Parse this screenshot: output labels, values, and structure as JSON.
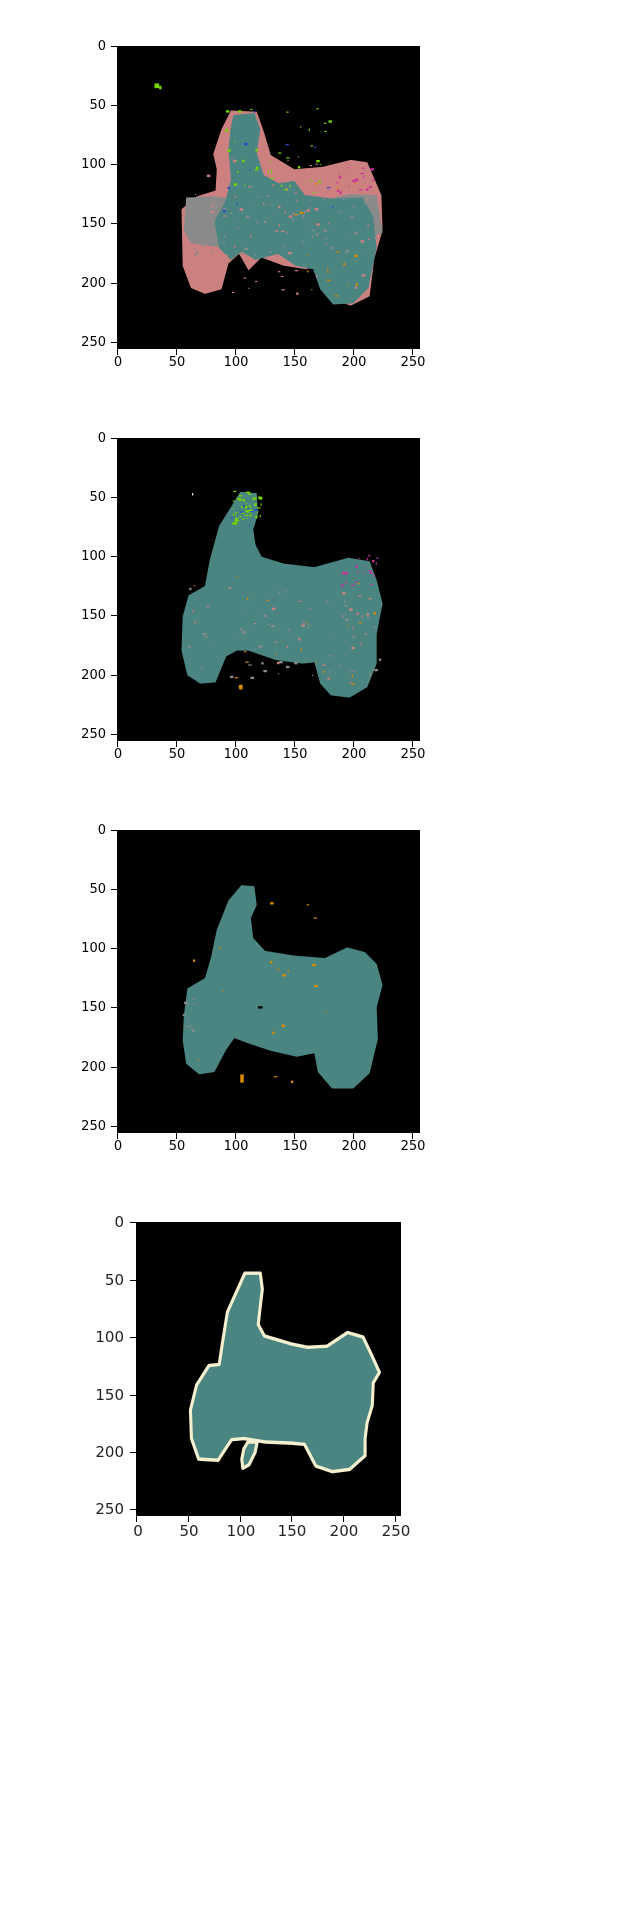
{
  "colors": {
    "background": "#000000",
    "main_segment": "#4a8582",
    "pink_segment": "#cd8080",
    "gray_segment": "#8a8a8a",
    "green_noise": "#74d600",
    "orange_noise": "#d98a00",
    "magenta_noise": "#cc2f9d",
    "blue_noise": "#2b46c8",
    "outline": "#f4efcf"
  },
  "chart_data": [
    {
      "type": "heatmap",
      "title": "",
      "xlabel": "",
      "ylabel": "",
      "xlim": [
        0,
        255
      ],
      "ylim": [
        255,
        0
      ],
      "x_ticks": [
        0,
        50,
        100,
        150,
        200,
        250
      ],
      "y_ticks": [
        0,
        50,
        100,
        150,
        200,
        250
      ],
      "grid": false,
      "segments": [
        {
          "color": "#cd8080",
          "polygon": [
            [
              96,
              54
            ],
            [
              118,
              55
            ],
            [
              124,
              72
            ],
            [
              130,
              92
            ],
            [
              150,
              104
            ],
            [
              174,
              102
            ],
            [
              198,
              96
            ],
            [
              212,
              98
            ],
            [
              224,
              126
            ],
            [
              225,
              156
            ],
            [
              218,
              180
            ],
            [
              214,
              212
            ],
            [
              198,
              220
            ],
            [
              186,
              216
            ],
            [
              177,
              195
            ],
            [
              174,
              184
            ],
            [
              160,
              189
            ],
            [
              141,
              186
            ],
            [
              122,
              179
            ],
            [
              111,
              190
            ],
            [
              103,
              176
            ],
            [
              94,
              184
            ],
            [
              88,
              206
            ],
            [
              74,
              210
            ],
            [
              62,
              205
            ],
            [
              55,
              186
            ],
            [
              54,
              138
            ],
            [
              67,
              127
            ],
            [
              83,
              122
            ],
            [
              84,
              104
            ],
            [
              81,
              91
            ],
            [
              88,
              70
            ]
          ]
        },
        {
          "color": "#8a8a8a",
          "polygon": [
            [
              58,
              128
            ],
            [
              84,
              127
            ],
            [
              112,
              132
            ],
            [
              143,
              132
            ],
            [
              171,
              131
            ],
            [
              198,
              125
            ],
            [
              220,
              126
            ],
            [
              225,
              158
            ],
            [
              214,
              162
            ],
            [
              195,
              167
            ],
            [
              177,
              178
            ],
            [
              151,
              179
            ],
            [
              127,
              172
            ],
            [
              106,
              170
            ],
            [
              84,
              170
            ],
            [
              62,
              167
            ],
            [
              56,
              156
            ]
          ]
        },
        {
          "color": "#4a8582",
          "polygon": [
            [
              98,
              58
            ],
            [
              116,
              56
            ],
            [
              121,
              70
            ],
            [
              118,
              90
            ],
            [
              124,
              109
            ],
            [
              137,
              116
            ],
            [
              150,
              114
            ],
            [
              159,
              126
            ],
            [
              183,
              129
            ],
            [
              208,
              128
            ],
            [
              217,
              144
            ],
            [
              220,
              170
            ],
            [
              213,
              205
            ],
            [
              200,
              218
            ],
            [
              183,
              219
            ],
            [
              172,
              206
            ],
            [
              166,
              189
            ],
            [
              151,
              186
            ],
            [
              136,
              176
            ],
            [
              117,
              181
            ],
            [
              105,
              174
            ],
            [
              96,
              181
            ],
            [
              86,
              171
            ],
            [
              82,
              148
            ],
            [
              91,
              132
            ],
            [
              96,
              113
            ],
            [
              94,
              87
            ],
            [
              96,
              68
            ]
          ]
        }
      ]
    },
    {
      "type": "heatmap",
      "title": "",
      "xlabel": "",
      "ylabel": "",
      "xlim": [
        0,
        255
      ],
      "ylim": [
        255,
        0
      ],
      "x_ticks": [
        0,
        50,
        100,
        150,
        200,
        250
      ],
      "y_ticks": [
        0,
        50,
        100,
        150,
        200,
        250
      ],
      "grid": false,
      "segments": [
        {
          "color": "#4a8582",
          "polygon": [
            [
              104,
              45
            ],
            [
              118,
              46
            ],
            [
              119,
              64
            ],
            [
              115,
              77
            ],
            [
              117,
              90
            ],
            [
              122,
              100
            ],
            [
              141,
              106
            ],
            [
              167,
              109
            ],
            [
              196,
              101
            ],
            [
              214,
              104
            ],
            [
              220,
              120
            ],
            [
              225,
              140
            ],
            [
              220,
              166
            ],
            [
              220,
              191
            ],
            [
              212,
              211
            ],
            [
              197,
              220
            ],
            [
              181,
              218
            ],
            [
              172,
              208
            ],
            [
              167,
              190
            ],
            [
              157,
              191
            ],
            [
              134,
              188
            ],
            [
              111,
              180
            ],
            [
              101,
              180
            ],
            [
              92,
              185
            ],
            [
              83,
              207
            ],
            [
              70,
              208
            ],
            [
              59,
              201
            ],
            [
              54,
              180
            ],
            [
              55,
              151
            ],
            [
              60,
              133
            ],
            [
              74,
              125
            ],
            [
              78,
              103
            ],
            [
              86,
              74
            ],
            [
              96,
              58
            ]
          ]
        }
      ]
    },
    {
      "type": "heatmap",
      "title": "",
      "xlabel": "",
      "ylabel": "",
      "xlim": [
        0,
        255
      ],
      "ylim": [
        255,
        0
      ],
      "x_ticks": [
        0,
        50,
        100,
        150,
        200,
        250
      ],
      "y_ticks": [
        0,
        50,
        100,
        150,
        200,
        250
      ],
      "grid": false,
      "segments": [
        {
          "color": "#4a8582",
          "polygon": [
            [
              105,
              46
            ],
            [
              116,
              47
            ],
            [
              118,
              63
            ],
            [
              113,
              74
            ],
            [
              115,
              91
            ],
            [
              125,
              102
            ],
            [
              150,
              106
            ],
            [
              176,
              108
            ],
            [
              195,
              99
            ],
            [
              210,
              103
            ],
            [
              220,
              113
            ],
            [
              225,
              131
            ],
            [
              220,
              150
            ],
            [
              221,
              177
            ],
            [
              214,
              206
            ],
            [
              200,
              219
            ],
            [
              182,
              219
            ],
            [
              170,
              205
            ],
            [
              167,
              189
            ],
            [
              152,
              192
            ],
            [
              130,
              187
            ],
            [
              109,
              180
            ],
            [
              99,
              176
            ],
            [
              92,
              186
            ],
            [
              82,
              205
            ],
            [
              69,
              207
            ],
            [
              58,
              198
            ],
            [
              55,
              178
            ],
            [
              56,
              157
            ],
            [
              59,
              134
            ],
            [
              74,
              125
            ],
            [
              79,
              108
            ],
            [
              84,
              84
            ],
            [
              94,
              59
            ]
          ]
        }
      ]
    },
    {
      "type": "heatmap",
      "title": "",
      "xlabel": "",
      "ylabel": "",
      "xlim": [
        0,
        255
      ],
      "ylim": [
        255,
        0
      ],
      "x_ticks": [
        0,
        50,
        100,
        150,
        200,
        250
      ],
      "y_ticks": [
        0,
        50,
        100,
        150,
        200,
        250
      ],
      "grid": false,
      "segments": [
        {
          "color": "#4a8582",
          "outline_color": "#f4efcf",
          "polygon": [
            [
              105,
              44
            ],
            [
              120,
              44
            ],
            [
              122,
              58
            ],
            [
              120,
              73
            ],
            [
              118,
              89
            ],
            [
              124,
              99
            ],
            [
              150,
              106
            ],
            [
              166,
              109
            ],
            [
              185,
              108
            ],
            [
              205,
              96
            ],
            [
              220,
              100
            ],
            [
              228,
              115
            ],
            [
              236,
              131
            ],
            [
              230,
              140
            ],
            [
              229,
              160
            ],
            [
              224,
              175
            ],
            [
              222,
              189
            ],
            [
              222,
              204
            ],
            [
              207,
              216
            ],
            [
              190,
              218
            ],
            [
              174,
              213
            ],
            [
              163,
              194
            ],
            [
              150,
              193
            ],
            [
              125,
              192
            ],
            [
              104,
              189
            ],
            [
              92,
              190
            ],
            [
              84,
              201
            ],
            [
              79,
              208
            ],
            [
              60,
              207
            ],
            [
              53,
              189
            ],
            [
              52,
              164
            ],
            [
              58,
              142
            ],
            [
              70,
              125
            ],
            [
              80,
              124
            ],
            [
              83,
              106
            ],
            [
              88,
              78
            ],
            [
              98,
              58
            ]
          ]
        },
        {
          "color": "#4a8582",
          "outline_color": "#f4efcf",
          "polygon": [
            [
              108,
              192
            ],
            [
              117,
              192
            ],
            [
              115,
              201
            ],
            [
              109,
              212
            ],
            [
              103,
              215
            ],
            [
              102,
              207
            ],
            [
              104,
              198
            ]
          ]
        }
      ]
    }
  ]
}
